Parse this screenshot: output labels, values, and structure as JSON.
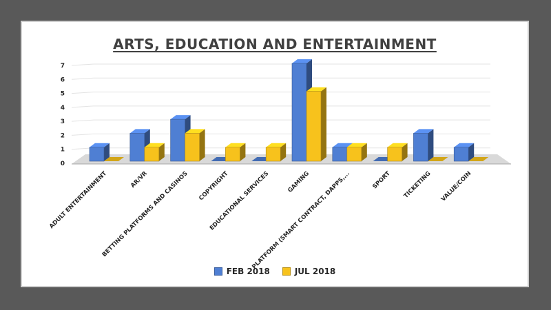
{
  "chart_data": {
    "type": "bar",
    "title": "ARTS, EDUCATION AND ENTERTAINMENT",
    "categories": [
      "ADULT ENTERTAINMENT",
      "AR/VR",
      "BETTING PLATFORMS AND CASINOS",
      "COPYRIGHT",
      "EDUCATIONAL SERVICES",
      "GAMING",
      "PLATFORM (SMART CONTRACT, DAPPS,...",
      "SPORT",
      "TICKETING",
      "VALUE/COIN"
    ],
    "series": [
      {
        "name": "FEB 2018",
        "values": [
          1,
          2,
          3,
          0,
          0,
          7,
          1,
          0,
          2,
          1
        ],
        "color": "#4f7fd3"
      },
      {
        "name": "JUL 2018",
        "values": [
          0,
          1,
          2,
          1,
          1,
          5,
          1,
          1,
          0,
          0
        ],
        "color": "#f7c21c"
      }
    ],
    "y_ticks": [
      "0",
      "1",
      "2",
      "3",
      "4",
      "5",
      "6",
      "7"
    ],
    "ylim": [
      0,
      7
    ],
    "grid": true,
    "legend_position": "bottom",
    "style": "3d-clustered-column"
  }
}
